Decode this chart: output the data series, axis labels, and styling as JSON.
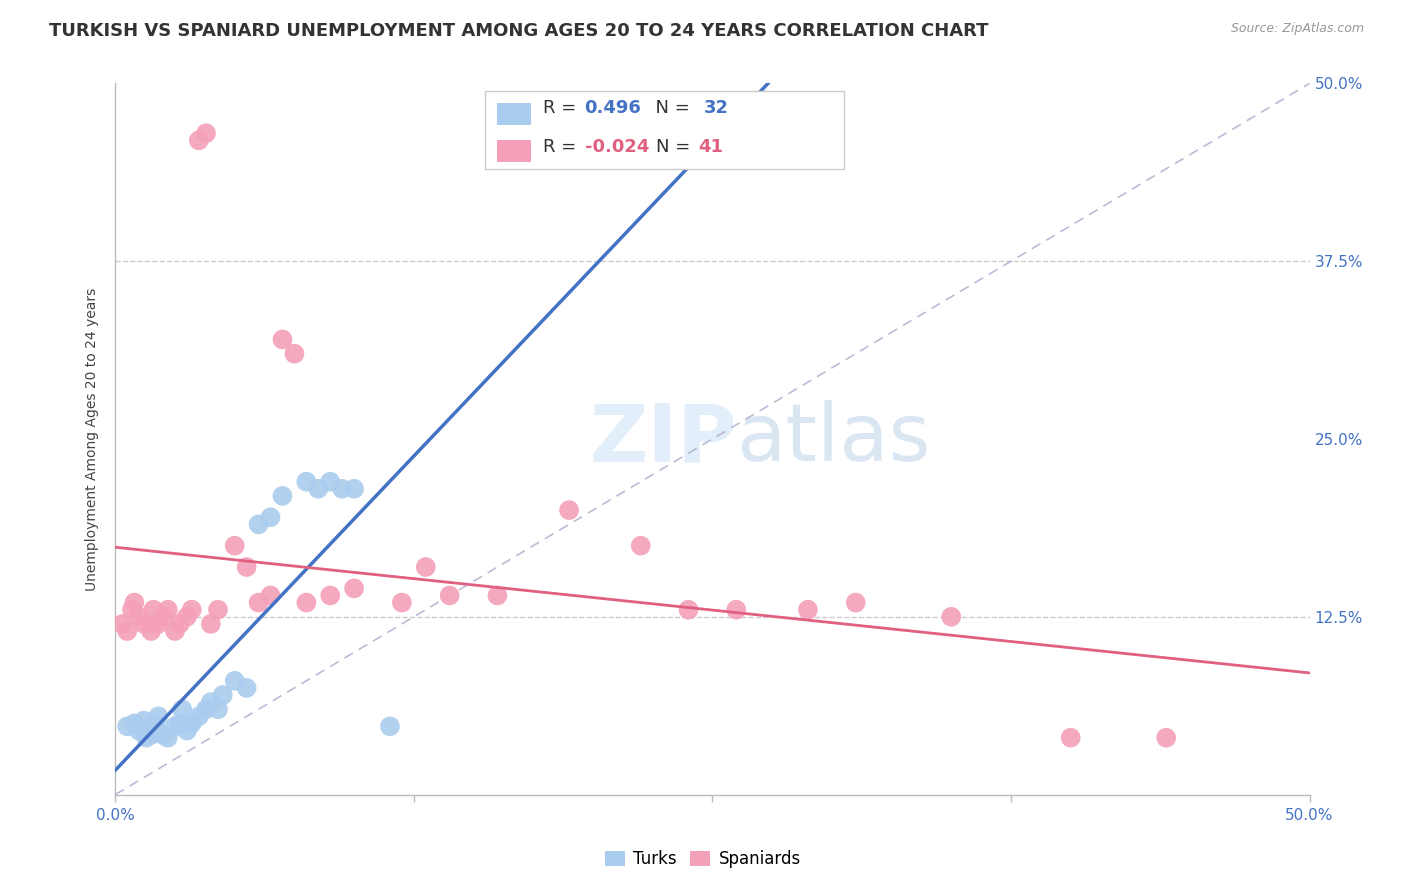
{
  "title": "TURKISH VS SPANIARD UNEMPLOYMENT AMONG AGES 20 TO 24 YEARS CORRELATION CHART",
  "source": "Source: ZipAtlas.com",
  "ylabel": "Unemployment Among Ages 20 to 24 years",
  "xlim": [
    0,
    0.5
  ],
  "ylim": [
    0,
    0.5
  ],
  "turks_R": 0.496,
  "turks_N": 32,
  "spaniards_R": -0.024,
  "spaniards_N": 41,
  "turks_color": "#aaccee",
  "turks_line_color": "#4472c4",
  "spaniards_color": "#f4a0b8",
  "spaniards_line_color": "#e06080",
  "diagonal_color": "#aaaacc",
  "turks_x": [
    0.005,
    0.008,
    0.01,
    0.012,
    0.013,
    0.015,
    0.016,
    0.017,
    0.018,
    0.02,
    0.022,
    0.025,
    0.027,
    0.028,
    0.03,
    0.032,
    0.035,
    0.038,
    0.04,
    0.043,
    0.045,
    0.05,
    0.055,
    0.06,
    0.065,
    0.07,
    0.08,
    0.085,
    0.09,
    0.095,
    0.1,
    0.115
  ],
  "turks_y": [
    0.048,
    0.05,
    0.045,
    0.052,
    0.04,
    0.042,
    0.05,
    0.048,
    0.055,
    0.042,
    0.04,
    0.048,
    0.05,
    0.06,
    0.045,
    0.05,
    0.055,
    0.06,
    0.065,
    0.06,
    0.07,
    0.08,
    0.075,
    0.19,
    0.195,
    0.21,
    0.22,
    0.215,
    0.22,
    0.215,
    0.215,
    0.048
  ],
  "spaniards_x": [
    0.003,
    0.005,
    0.007,
    0.008,
    0.01,
    0.012,
    0.015,
    0.016,
    0.018,
    0.02,
    0.022,
    0.025,
    0.027,
    0.03,
    0.032,
    0.035,
    0.038,
    0.04,
    0.043,
    0.05,
    0.055,
    0.06,
    0.065,
    0.07,
    0.075,
    0.08,
    0.09,
    0.1,
    0.12,
    0.13,
    0.14,
    0.16,
    0.19,
    0.22,
    0.24,
    0.26,
    0.29,
    0.31,
    0.35,
    0.4,
    0.44
  ],
  "spaniards_y": [
    0.12,
    0.115,
    0.13,
    0.135,
    0.125,
    0.12,
    0.115,
    0.13,
    0.12,
    0.125,
    0.13,
    0.115,
    0.12,
    0.125,
    0.13,
    0.46,
    0.465,
    0.12,
    0.13,
    0.175,
    0.16,
    0.135,
    0.14,
    0.32,
    0.31,
    0.135,
    0.14,
    0.145,
    0.135,
    0.16,
    0.14,
    0.14,
    0.2,
    0.175,
    0.13,
    0.13,
    0.13,
    0.135,
    0.125,
    0.04,
    0.04
  ],
  "title_fontsize": 13,
  "label_fontsize": 10,
  "tick_fontsize": 11,
  "legend_fontsize": 13
}
